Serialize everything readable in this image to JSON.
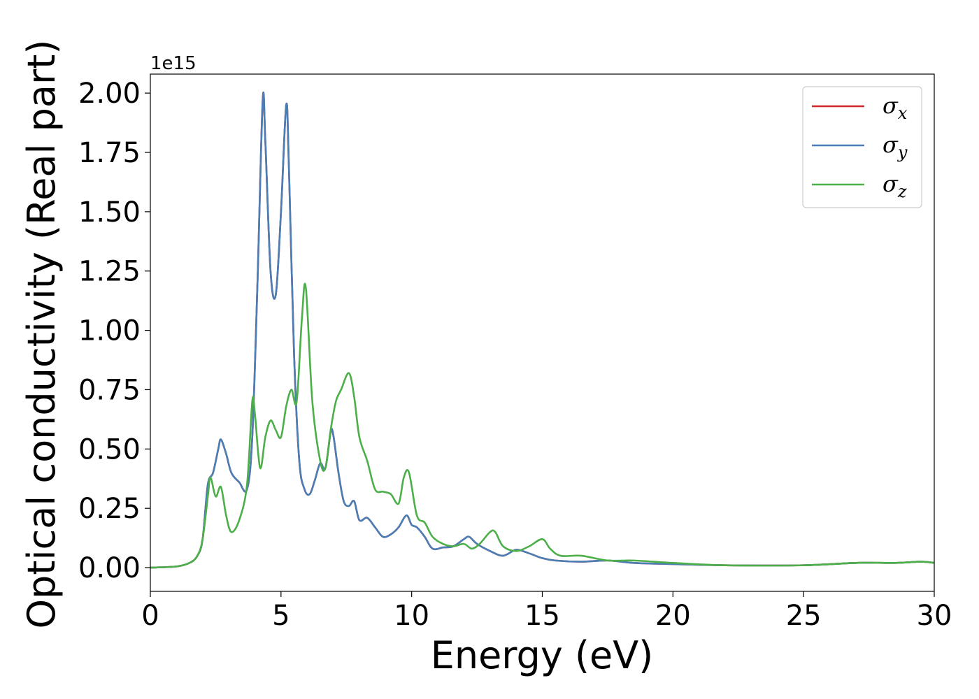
{
  "chart_data": {
    "type": "line",
    "xlabel": "Energy (eV)",
    "ylabel": "Optical conductivity (Real part)",
    "y_offset_label": "1e15",
    "xlim": [
      0,
      30
    ],
    "ylim": [
      -0.1,
      2.08
    ],
    "x_ticks": [
      0,
      5,
      10,
      15,
      20,
      25,
      30
    ],
    "x_tick_labels": [
      "0",
      "5",
      "10",
      "15",
      "20",
      "25",
      "30"
    ],
    "y_ticks": [
      0.0,
      0.25,
      0.5,
      0.75,
      1.0,
      1.25,
      1.5,
      1.75,
      2.0
    ],
    "y_tick_labels": [
      "0.00",
      "0.25",
      "0.50",
      "0.75",
      "1.00",
      "1.25",
      "1.50",
      "1.75",
      "2.00"
    ],
    "grid": false,
    "legend_position": "top-right",
    "series": [
      {
        "name": "σx",
        "sub": "x",
        "color": "#d62728",
        "x": [
          0,
          1,
          1.5,
          1.8,
          2.0,
          2.2,
          2.4,
          2.6,
          2.7,
          2.9,
          3.1,
          3.4,
          3.7,
          3.9,
          4.1,
          4.3,
          4.4,
          4.6,
          4.8,
          5.0,
          5.2,
          5.3,
          5.5,
          5.7,
          5.9,
          6.1,
          6.3,
          6.5,
          6.7,
          6.9,
          7.0,
          7.2,
          7.4,
          7.6,
          7.8,
          8.0,
          8.3,
          8.6,
          8.9,
          9.2,
          9.5,
          9.8,
          10.0,
          10.2,
          10.5,
          10.8,
          11.2,
          11.6,
          12.0,
          12.2,
          12.5,
          13.0,
          13.5,
          14.0,
          14.5,
          15.0,
          15.5,
          16.5,
          17.5,
          18.5,
          20,
          22,
          25,
          27,
          28.5,
          29.5,
          30
        ],
        "y": [
          0,
          0.005,
          0.02,
          0.05,
          0.12,
          0.35,
          0.4,
          0.5,
          0.54,
          0.48,
          0.4,
          0.36,
          0.33,
          0.55,
          1.2,
          1.97,
          1.8,
          1.25,
          1.15,
          1.5,
          1.95,
          1.7,
          0.9,
          0.45,
          0.33,
          0.31,
          0.37,
          0.44,
          0.42,
          0.57,
          0.56,
          0.4,
          0.28,
          0.26,
          0.28,
          0.2,
          0.21,
          0.17,
          0.13,
          0.14,
          0.17,
          0.22,
          0.18,
          0.17,
          0.13,
          0.08,
          0.085,
          0.09,
          0.12,
          0.13,
          0.1,
          0.07,
          0.05,
          0.075,
          0.06,
          0.04,
          0.03,
          0.025,
          0.03,
          0.02,
          0.015,
          0.01,
          0.01,
          0.02,
          0.02,
          0.025,
          0.02
        ]
      },
      {
        "name": "σy",
        "sub": "y",
        "color": "#4a7fb6",
        "x": [
          0,
          1,
          1.5,
          1.8,
          2.0,
          2.2,
          2.4,
          2.6,
          2.7,
          2.9,
          3.1,
          3.4,
          3.7,
          3.9,
          4.1,
          4.3,
          4.4,
          4.6,
          4.8,
          5.0,
          5.2,
          5.3,
          5.5,
          5.7,
          5.9,
          6.1,
          6.3,
          6.5,
          6.7,
          6.9,
          7.0,
          7.2,
          7.4,
          7.6,
          7.8,
          8.0,
          8.3,
          8.6,
          8.9,
          9.2,
          9.5,
          9.8,
          10.0,
          10.2,
          10.5,
          10.8,
          11.2,
          11.6,
          12.0,
          12.2,
          12.5,
          13.0,
          13.5,
          14.0,
          14.5,
          15.0,
          15.5,
          16.5,
          17.5,
          18.5,
          20,
          22,
          25,
          27,
          28.5,
          29.5,
          30
        ],
        "y": [
          0,
          0.005,
          0.02,
          0.05,
          0.12,
          0.35,
          0.4,
          0.5,
          0.54,
          0.48,
          0.4,
          0.36,
          0.33,
          0.55,
          1.2,
          1.97,
          1.8,
          1.25,
          1.15,
          1.5,
          1.95,
          1.7,
          0.9,
          0.45,
          0.33,
          0.31,
          0.37,
          0.44,
          0.42,
          0.57,
          0.56,
          0.4,
          0.28,
          0.26,
          0.28,
          0.2,
          0.21,
          0.17,
          0.13,
          0.14,
          0.17,
          0.22,
          0.18,
          0.17,
          0.13,
          0.08,
          0.085,
          0.09,
          0.12,
          0.13,
          0.1,
          0.07,
          0.05,
          0.075,
          0.06,
          0.04,
          0.03,
          0.025,
          0.03,
          0.02,
          0.015,
          0.01,
          0.01,
          0.02,
          0.02,
          0.025,
          0.02
        ]
      },
      {
        "name": "σz",
        "sub": "z",
        "color": "#4daf4a",
        "x": [
          0,
          1,
          1.5,
          1.8,
          2.0,
          2.2,
          2.3,
          2.5,
          2.7,
          2.9,
          3.1,
          3.4,
          3.7,
          3.9,
          4.0,
          4.2,
          4.4,
          4.6,
          4.8,
          5.0,
          5.2,
          5.4,
          5.6,
          5.8,
          5.95,
          6.2,
          6.5,
          6.7,
          6.9,
          7.1,
          7.3,
          7.6,
          7.8,
          8.0,
          8.3,
          8.6,
          8.9,
          9.2,
          9.5,
          9.7,
          9.9,
          10.2,
          10.5,
          10.8,
          11.2,
          11.6,
          12.0,
          12.3,
          12.6,
          13.0,
          13.2,
          13.5,
          14.0,
          14.5,
          15.0,
          15.3,
          15.7,
          16.5,
          17.5,
          18.5,
          20,
          22,
          25,
          27,
          28.5,
          29.5,
          30
        ],
        "y": [
          0,
          0.005,
          0.02,
          0.05,
          0.12,
          0.3,
          0.38,
          0.3,
          0.34,
          0.22,
          0.15,
          0.2,
          0.35,
          0.7,
          0.65,
          0.42,
          0.55,
          0.62,
          0.58,
          0.55,
          0.68,
          0.75,
          0.7,
          1.05,
          1.18,
          0.7,
          0.45,
          0.42,
          0.58,
          0.7,
          0.75,
          0.82,
          0.72,
          0.55,
          0.45,
          0.33,
          0.32,
          0.31,
          0.27,
          0.38,
          0.4,
          0.22,
          0.19,
          0.13,
          0.1,
          0.09,
          0.1,
          0.08,
          0.1,
          0.15,
          0.15,
          0.09,
          0.07,
          0.09,
          0.12,
          0.08,
          0.05,
          0.05,
          0.03,
          0.03,
          0.02,
          0.01,
          0.01,
          0.02,
          0.02,
          0.025,
          0.02
        ]
      }
    ]
  }
}
